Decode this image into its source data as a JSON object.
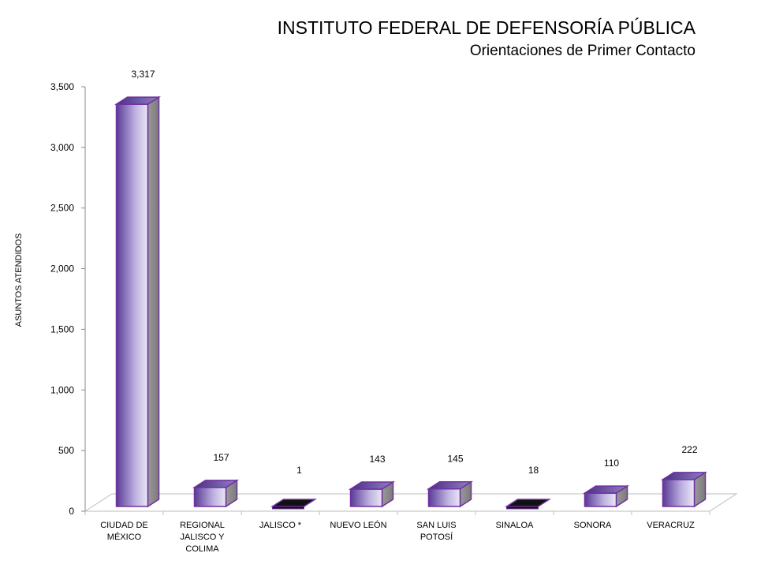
{
  "chart_data": {
    "type": "bar",
    "title": "INSTITUTO FEDERAL DE  DEFENSORÍA PÚBLICA",
    "subtitle": "Orientaciones de Primer Contacto",
    "ylabel": "ASUNTOS ATENDIDOS",
    "xlabel": "",
    "ylim": [
      0,
      3500
    ],
    "yticks": [
      0,
      500,
      1000,
      1500,
      2000,
      2500,
      3000,
      3500
    ],
    "ytick_labels": [
      "0",
      "500",
      "1,000",
      "1,500",
      "2,000",
      "2,500",
      "3,000",
      "3,500"
    ],
    "categories": [
      [
        "CIUDAD DE",
        "MÉXICO"
      ],
      [
        "REGIONAL",
        "JALISCO Y",
        "COLIMA"
      ],
      [
        "JALISCO *"
      ],
      [
        "NUEVO LEÓN"
      ],
      [
        "SAN LUIS",
        "POTOSÍ"
      ],
      [
        "SINALOA"
      ],
      [
        "SONORA"
      ],
      [
        "VERACRUZ"
      ]
    ],
    "values": [
      3317,
      157,
      1,
      143,
      145,
      18,
      110,
      222
    ],
    "value_labels": [
      "3,317",
      "157",
      "1",
      "143",
      "145",
      "18",
      "110",
      "222"
    ],
    "grid": false,
    "legend": "none",
    "style": "3d-column",
    "colors": {
      "bar_dark": "#5a3a96",
      "bar_light": "#eae6f6",
      "bar_outline": "#7030a0",
      "side": "#8a8a8a",
      "special_bar": "#111111"
    }
  }
}
